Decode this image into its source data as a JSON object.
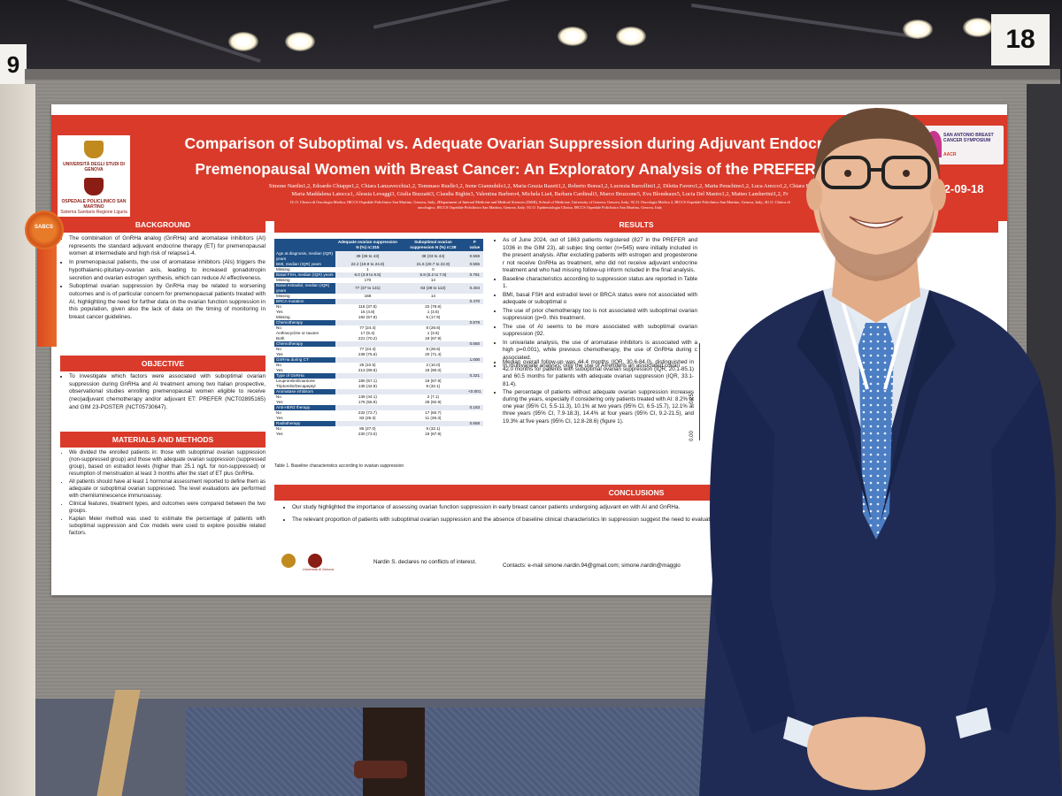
{
  "booth_numbers": {
    "left": "9",
    "right": "18"
  },
  "poster": {
    "logos": {
      "university_name": "UNIVERSITÀ DEGLI STUDI DI GENOVA",
      "hospital_name": "OSPEDALE POLICLINICO SAN MARTINO",
      "hospital_subtitle": "Sistema Sanitario Regione Liguria",
      "sabcs_name": "SAN ANTONIO BREAST CANCER SYMPOSIUM",
      "sabcs_sub": "AACR"
    },
    "rosette_text": "SABCS",
    "title_line1": "Comparison of Suboptimal vs. Adequate Ovarian Suppression during Adjuvant Endocrine Thera",
    "title_line2": "Premenopausal Women with Breast Cancer: An Exploratory Analysis of the PREFER and GIM",
    "poster_code": "P2-09-18",
    "authors_line1": "Simone Nardin1,2, Edoardo Chiappe1,2, Chiara Lanzavecchia1,2, Tommaso Ruelle1,2, Irene Giannubilo1,2, Maria Grazia Razeti1,2, Roberto Borea1,2, Lucrezia Barcellini1,2, Diletta Favero1,2, Marta Perachino1,2, Luca Arecco1,2, Chiara M",
    "authors_line2": "Maria Maddalena Latocca1, Alessia Levaggi3, Giulia Buzzatti3, Claudia Bighin3, Valentina Barbero4, Michela Lia4, Barbara Cardinali3, Marco Bruzzone5, Eva Blondeaux5, Lucia Del Mastro1,2, Matteo Lambertini1,2, Fr",
    "affiliations_line1": "1U.O. Clinica di Oncologia Medica, IRCCS Ospedale Policlinico San Martino, Genova, Italy; 2Department of Internal Medicine and Medical Sciences (DiMI), School of Medicine, University of Genova, Genova, Italy; 3U.O. Oncologia Medica 2, IRCCS Ospedale Policlinico San Martino, Genova, Italy; 4U.O. Clinica di",
    "affiliations_line2": "oncologico, IRCCS Ospedale Policlinico San Martino, Genova, Italy; 5U.O. Epidemiologia Clinica, IRCCS Ospedale Policlinico San Martino, Genova, Italy",
    "background": {
      "heading": "BACKGROUND",
      "items": [
        "The combination of GnRHa analog (GnRHa) and aromatase inhibitors (AI) represents the standard adjuvant endocrine therapy (ET) for premenopausal women at intermediate and high risk of relapse1-4.",
        "In premenopausal patients, the use of aromatase inhibitors (AIs) triggers the hypothalamic-pituitary-ovarian axis, leading to increased gonadotropin secretion and ovarian estrogen synthesis, which can reduce AI effectiveness.",
        "Suboptimal ovarian suppression by GnRHa may be related to worsening outcomes and is of particular concern for premenopausal patients treated with AI, highlighting the need for further data on the ovarian function suppression in this population, given also the lack of data on the timing of monitoring in breast cancer guidelines."
      ]
    },
    "objective": {
      "heading": "OBJECTIVE",
      "items": [
        "To investigate which factors were associated with suboptimal ovarian suppression during GnRHa and AI treatment among two Italian prospective, observational studies enrolling premenopausal women eligible to receive (neo)adjuvant chemotherapy and/or adjuvant ET: PREFER (NCT02895165) and GIM 23-POSTER (NCT05730647)."
      ]
    },
    "methods": {
      "heading": "MATERIALS AND METHODS",
      "items": [
        "We divided the enrolled patients in: those with suboptimal ovarian suppression (non-suppressed group) and those with adequate ovarian suppression (suppressed group), based on estradiol levels (higher than 25.1 ng/L for non-suppressed) or resumption of menstruation at least 3 months after the start of ET plus GnRHa.",
        "All patients should have at least 1 hormonal assessment reported to define them as adequate or suboptimal ovarian suppressed. The level evaluations are performed with chemiluminescence immunoassay.",
        "Clinical features, treatment types, and outcomes were compared between the two groups.",
        "Kaplan Meier method was used to estimate the percentage of patients with suboptimal suppression and Cox models were used to explore possible related factors."
      ]
    },
    "results": {
      "heading": "RESULTS",
      "items": [
        "As of June 2024, out of 1863 patients registered (827 in the PREFER and 1036 in the GIM 23), all subjec ting center (n=545) were initially included in the present analysis. After excluding patients with estrogen and progesterone r not receive GnRHa as treatment, who did not receive adjuvant endocrine treatment and who had missing follow-up inform ncluded in the final analysis.",
        "Baseline characteristics according to suppression status are reported in Table 1.",
        "BMI, basal FSH and estradiol level or BRCA status were not associated with adequate or suboptimal o",
        "The use of prior chemotherapy too is not associated with suboptimal ovarian suppression (p=0. this treatment.",
        "The use of AI seems to be more associated with suboptimal ovarian suppression (92.",
        "In univariate analysis, the use of aromatase inhibitors is associated with a high p=0.001), while previous chemotherapy, the use of GnRHa during c associated.",
        "In multivariate analysis, only the use of AIremains an associated covari",
        "Median overall follow-up was 44.4 months (IQR, 30.6-84.0), distinguished in 42.0 months for patients with suboptimal ovarian suppression (IQR, 20.1-85.1) and 60.5 months for patients with adequate ovarian suppression (IQR, 33.1-81.4).",
        "The percentage of patients without adequate ovarian suppression increases during the years, especially if considering only patients treated with AI: 8.2% at one year (95% CI, 5.5-11.3), 10.1% at two years (95% CI, 6.5-15.7), 12.1% at three years (95% CI, 7.9-18.3), 14.4% at four years (95% CI, 9.2-21.5), and 19.3% at five years (95% CI, 12.8-28.6) (figure 1)."
      ],
      "km_ticks": [
        "0.25",
        "0.00"
      ]
    },
    "table": {
      "caption": "Table 1. Baseline characteristics according to ovarian suppression",
      "columns": [
        "",
        "Adequate ovarian suppression N (%) n=315",
        "Suboptimal ovarian suppression N (%) n=28",
        "P value"
      ],
      "rows": [
        [
          "Age at diagnosis, median (IQR) years",
          "39 (36 to 43)",
          "38 (33 to 44)",
          "0.559"
        ],
        [
          "BMI, median (IQR) years",
          "22.2 (19.9 to 24.8)",
          "21.6 (20.7 to 22.9)",
          "0.555"
        ],
        [
          "Missing",
          "1",
          "0",
          ""
        ],
        [
          "Basal FSH, median (IQR) years",
          "6.0 (3.8 to 8.5)",
          "5.9 (5.2 to 7.9)",
          "0.781"
        ],
        [
          "Missing",
          "170",
          "14",
          ""
        ],
        [
          "Basal estradiol, median (IQR) years",
          "77 (37 to 131)",
          "63 (39 to 113)",
          "0.404"
        ],
        [
          "Missing",
          "168",
          "14",
          ""
        ],
        [
          "BRCA mutation",
          "",
          "",
          "0.470"
        ],
        [
          "No",
          "118 (37.5)",
          "22 (78.6)",
          ""
        ],
        [
          "Yes",
          "15 (4.8)",
          "1 (3.6)",
          ""
        ],
        [
          "Missing",
          "182 (57.8)",
          "5 (17.9)",
          ""
        ],
        [
          "Chemotherapy",
          "",
          "",
          "0.878"
        ],
        [
          "No",
          "77 (24.4)",
          "8 (28.6)",
          ""
        ],
        [
          "Anthracycline or taxane",
          "17 (5.4)",
          "1 (3.6)",
          ""
        ],
        [
          "Both",
          "221 (70.2)",
          "19 (67.9)",
          ""
        ],
        [
          "Chemotherapy",
          "",
          "",
          "0.650"
        ],
        [
          "No",
          "77 (24.4)",
          "8 (28.6)",
          ""
        ],
        [
          "Yes",
          "238 (75.6)",
          "20 (71.4)",
          ""
        ],
        [
          "GnRHa during CT",
          "",
          "",
          "1.000"
        ],
        [
          "No",
          "25 (10.5)",
          "2 (10.0)",
          ""
        ],
        [
          "Yes",
          "213 (89.5)",
          "18 (90.0)",
          ""
        ],
        [
          "Type of GnRHa",
          "",
          "",
          "0.321"
        ],
        [
          "Leuprorelin/Enantone",
          "180 (57.1)",
          "19 (67.9)",
          ""
        ],
        [
          "Triptorelin/Decapeptyl",
          "135 (42.9)",
          "9 (32.1)",
          ""
        ],
        [
          "Aromatase inhibitors",
          "",
          "",
          "<0.001"
        ],
        [
          "No",
          "139 (44.1)",
          "2 (7.1)",
          ""
        ],
        [
          "Yes",
          "176 (55.9)",
          "26 (92.9)",
          ""
        ],
        [
          "Anti-HER2 therapy",
          "",
          "",
          "0.183"
        ],
        [
          "No",
          "232 (73.7)",
          "17 (60.7)",
          ""
        ],
        [
          "Yes",
          "83 (26.3)",
          "11 (39.3)",
          ""
        ],
        [
          "Radiotherapy",
          "",
          "",
          "0.658"
        ],
        [
          "No",
          "85 (27.0)",
          "9 (32.1)",
          ""
        ],
        [
          "Yes",
          "230 (73.0)",
          "19 (67.9)",
          ""
        ]
      ]
    },
    "conclusions": {
      "heading": "CONCLUSIONS",
      "items": [
        "Our study highlighted the importance of assessing ovarian function suppression in early breast cancer patients undergoing adjuvant en with AI and GnRHa.",
        "The relevant proportion of patients with suboptimal ovarian suppression and the absence of baseline clinical characteristics lin suppression suggest the need to evaluate all patients, throughout all years of treatment"
      ]
    },
    "footer": {
      "disclosure": "Nardin S. declares no conflicts of interest.",
      "contacts": "Contacts: e-mail simone.nardin.94@gmail.com; simone.nardin@maggio",
      "logo_text": "Università di Genova"
    }
  }
}
